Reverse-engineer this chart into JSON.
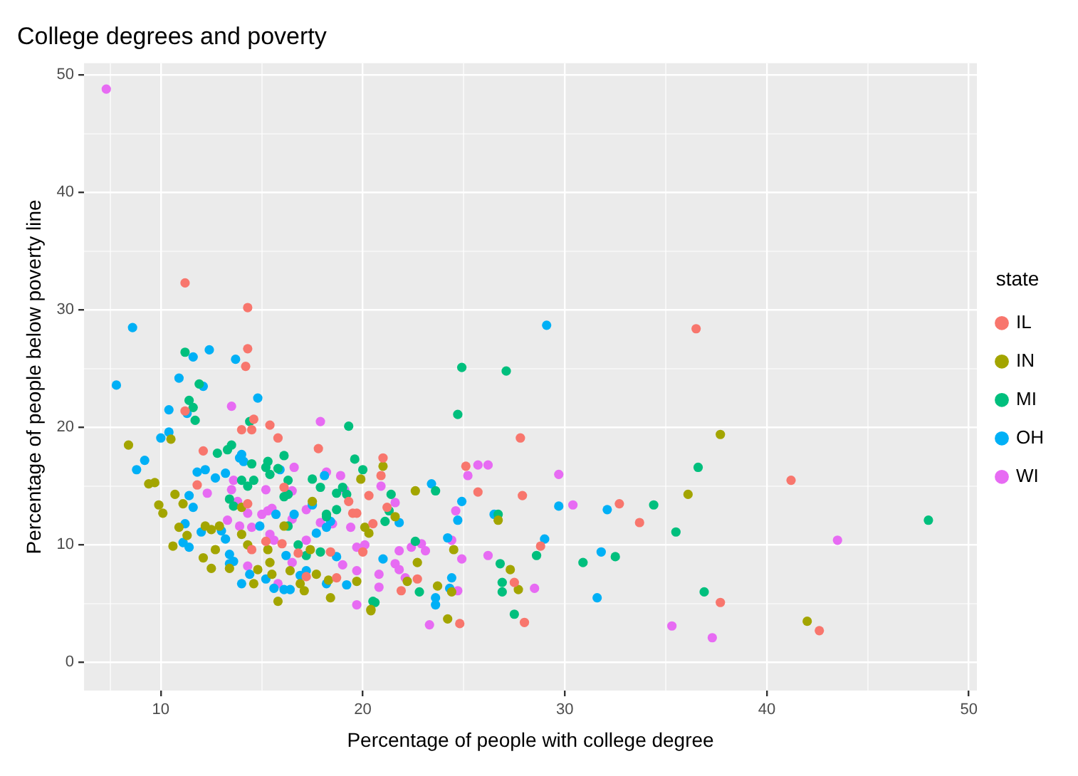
{
  "chart_data": {
    "type": "scatter",
    "title": "College degrees and poverty",
    "xlabel": "Percentage of people with college degree",
    "ylabel": "Percentage of people below poverty line",
    "legend_title": "state",
    "legend": "right",
    "grid": true,
    "marker": "circle",
    "xlim": [
      6.2,
      50.4
    ],
    "ylim": [
      -2.4,
      51.0
    ],
    "xticks": [
      {
        "value": 7.5,
        "label": null
      },
      10,
      {
        "value": 15,
        "label": null
      },
      20,
      {
        "value": 25,
        "label": null
      },
      30,
      {
        "value": 35,
        "label": null
      },
      40,
      {
        "value": 45,
        "label": null
      },
      50
    ],
    "yticks": [
      0,
      {
        "value": 5,
        "label": null
      },
      10,
      {
        "value": 15,
        "label": null
      },
      20,
      {
        "value": 25,
        "label": null
      },
      30,
      {
        "value": 35,
        "label": null
      },
      40,
      {
        "value": 45,
        "label": null
      },
      50
    ],
    "series": [
      {
        "name": "IL",
        "color": "#f8766d",
        "x": [
          11.2,
          14.3,
          14.3,
          14.2,
          36.5,
          41.2,
          32.7,
          33.7,
          37.7,
          42.6,
          27.8,
          25.1,
          25.7,
          27.9,
          28.8,
          27.5,
          28.0,
          24.8,
          22.7,
          21.9,
          21.0,
          20.9,
          20.3,
          21.2,
          20.5,
          19.5,
          11.2,
          14.6,
          14.0,
          14.5,
          15.4,
          15.8,
          17.8,
          12.1,
          11.8,
          14.5,
          15.2,
          17.2,
          18.7,
          18.4,
          20.0,
          16.8,
          19.3,
          19.7,
          16.1,
          14.3,
          16.0
        ],
        "values": [
          32.3,
          30.2,
          26.7,
          25.2,
          28.4,
          15.5,
          13.5,
          11.9,
          5.1,
          2.7,
          19.1,
          16.7,
          14.5,
          14.2,
          9.9,
          6.8,
          3.4,
          3.3,
          7.1,
          6.1,
          17.4,
          15.9,
          14.2,
          13.2,
          11.8,
          12.7,
          21.4,
          20.7,
          19.8,
          19.8,
          20.2,
          19.1,
          18.2,
          18.0,
          15.1,
          9.6,
          10.3,
          7.3,
          7.2,
          9.4,
          9.4,
          9.3,
          13.7,
          12.7,
          14.9,
          13.5,
          10.1
        ]
      },
      {
        "name": "IN",
        "color": "#a3a500",
        "x": [
          37.7,
          36.1,
          42.0,
          22.6,
          26.7,
          24.5,
          27.3,
          27.7,
          24.4,
          24.2,
          22.7,
          23.7,
          22.2,
          20.4,
          19.7,
          21.0,
          19.9,
          21.6,
          20.2,
          10.5,
          8.4,
          9.4,
          9.7,
          9.9,
          10.1,
          10.7,
          11.1,
          10.9,
          11.3,
          10.6,
          12.1,
          12.5,
          12.2,
          12.5,
          12.7,
          13.4,
          14.6,
          14.8,
          14.0,
          14.3,
          12.9,
          15.3,
          16.1,
          15.4,
          15.5,
          15.8,
          16.4,
          16.9,
          17.1,
          17.7,
          18.3,
          18.4,
          20.4,
          17.4,
          20.1,
          20.3,
          17.5,
          14.0
        ],
        "values": [
          19.4,
          14.3,
          3.5,
          14.6,
          12.1,
          9.6,
          7.9,
          6.2,
          6.0,
          3.7,
          8.5,
          6.5,
          6.9,
          4.4,
          6.9,
          16.7,
          15.6,
          12.4,
          null,
          19.0,
          18.5,
          15.2,
          15.3,
          13.4,
          12.7,
          14.3,
          13.5,
          11.5,
          10.8,
          9.9,
          8.9,
          8.0,
          11.6,
          11.3,
          9.6,
          8.0,
          6.7,
          7.9,
          10.9,
          10.0,
          11.6,
          9.6,
          11.6,
          8.5,
          7.5,
          5.2,
          7.8,
          6.7,
          6.1,
          7.5,
          7.0,
          5.5,
          4.5,
          9.6,
          11.5,
          11.0,
          13.7,
          13.2
        ]
      },
      {
        "name": "MI",
        "color": "#00bf7d",
        "x": [
          36.6,
          34.4,
          35.5,
          32.5,
          36.9,
          48.0,
          24.9,
          27.1,
          24.7,
          19.3,
          23.6,
          26.7,
          26.8,
          28.6,
          30.9,
          26.9,
          26.9,
          27.5,
          22.8,
          22.6,
          20.6,
          19.6,
          20.0,
          21.4,
          21.3,
          21.1,
          11.2,
          11.9,
          11.4,
          11.6,
          11.7,
          14.4,
          12.8,
          13.3,
          13.5,
          20.5,
          17.2,
          17.9,
          16.8,
          18.2,
          18.7,
          19.0,
          18.7,
          19.2,
          17.5,
          17.9,
          16.1,
          15.3,
          15.8,
          15.2,
          16.3,
          16.1,
          16.3,
          18.2,
          16.3,
          14.5,
          14.0,
          14.3,
          14.6,
          13.4,
          13.6,
          15.4
        ],
        "values": [
          16.6,
          13.4,
          11.1,
          9.0,
          6.0,
          12.1,
          25.1,
          24.8,
          21.1,
          20.1,
          14.6,
          12.6,
          8.4,
          9.1,
          8.5,
          6.8,
          6.0,
          4.1,
          6.0,
          10.3,
          5.1,
          17.3,
          16.4,
          14.3,
          12.9,
          12.0,
          26.4,
          23.7,
          22.3,
          21.7,
          20.6,
          20.5,
          17.8,
          18.1,
          18.5,
          5.2,
          9.1,
          9.4,
          10.0,
          12.4,
          13.0,
          14.9,
          14.4,
          14.3,
          15.6,
          14.9,
          17.6,
          17.1,
          16.5,
          16.6,
          15.5,
          14.1,
          14.3,
          12.6,
          11.6,
          16.9,
          15.5,
          15.0,
          15.5,
          13.9,
          13.3,
          16.0
        ]
      },
      {
        "name": "OH",
        "color": "#00b0f6",
        "x": [
          32.1,
          31.8,
          31.6,
          29.1,
          23.4,
          24.9,
          29.7,
          24.7,
          26.5,
          24.2,
          29.0,
          24.4,
          24.3,
          23.6,
          23.6,
          21.0,
          19.2,
          21.8,
          8.6,
          11.6,
          12.4,
          13.7,
          7.8,
          10.9,
          12.1,
          14.8,
          10.4,
          11.3,
          10.4,
          10.0,
          9.2,
          8.8,
          11.4,
          11.6,
          11.8,
          12.2,
          11.2,
          11.1,
          11.4,
          12.0,
          13.4,
          13.6,
          13.4,
          14.0,
          14.4,
          13.2,
          13.0,
          14.9,
          15.7,
          16.2,
          15.2,
          15.6,
          16.1,
          16.4,
          16.9,
          17.2,
          18.2,
          18.7,
          17.7,
          18.2,
          18.4,
          18.1,
          15.9,
          17.5,
          16.6,
          13.9,
          14.0,
          14.1,
          12.7,
          13.2
        ],
        "values": [
          13.0,
          9.4,
          5.5,
          28.7,
          15.2,
          13.7,
          13.3,
          12.1,
          12.6,
          10.6,
          10.5,
          7.2,
          6.3,
          5.5,
          4.9,
          8.8,
          6.6,
          11.9,
          28.5,
          26.0,
          26.6,
          25.8,
          23.6,
          24.2,
          23.5,
          22.5,
          21.5,
          21.2,
          19.6,
          19.1,
          17.2,
          16.4,
          14.2,
          13.2,
          16.2,
          16.4,
          11.8,
          10.2,
          9.8,
          11.1,
          9.2,
          8.6,
          8.4,
          6.7,
          7.5,
          10.5,
          11.2,
          11.6,
          12.6,
          9.1,
          7.1,
          6.3,
          6.2,
          6.2,
          7.4,
          7.8,
          6.7,
          9.0,
          11.0,
          11.5,
          12.0,
          15.9,
          16.4,
          13.4,
          12.6,
          17.4,
          17.7,
          17.1,
          15.7,
          16.1
        ]
      },
      {
        "name": "WI",
        "color": "#e76bf3",
        "x": [
          7.3,
          43.5,
          35.3,
          37.3,
          25.7,
          26.2,
          25.2,
          29.7,
          30.4,
          24.6,
          24.4,
          24.9,
          26.2,
          28.5,
          24.7,
          23.3,
          21.8,
          22.4,
          22.9,
          23.1,
          21.6,
          21.8,
          22.1,
          19.7,
          20.8,
          20.8,
          20.9,
          21.6,
          13.5,
          17.9,
          12.3,
          14.3,
          13.3,
          13.9,
          14.5,
          15.0,
          15.3,
          15.5,
          15.6,
          15.4,
          16.5,
          15.8,
          19.7,
          19.0,
          19.7,
          20.1,
          17.2,
          17.9,
          18.5,
          19.4,
          19.1,
          18.2,
          18.9,
          15.2,
          16.5,
          17.2,
          16.5,
          16.6,
          13.6,
          13.5,
          13.8,
          14.3
        ],
        "values": [
          48.8,
          10.4,
          3.1,
          2.1,
          16.8,
          16.8,
          15.9,
          16.0,
          13.4,
          12.9,
          10.4,
          8.8,
          9.1,
          6.3,
          6.1,
          3.2,
          9.5,
          9.8,
          10.1,
          9.5,
          8.4,
          7.9,
          7.2,
          4.9,
          7.5,
          6.4,
          15.0,
          13.6,
          21.8,
          20.5,
          14.4,
          8.2,
          12.1,
          11.6,
          11.5,
          12.6,
          12.9,
          13.1,
          10.4,
          10.9,
          8.5,
          6.7,
          7.8,
          8.3,
          9.8,
          10.0,
          10.4,
          11.9,
          11.8,
          11.5,
          14.7,
          16.2,
          15.9,
          14.7,
          14.6,
          13.0,
          12.2,
          16.6,
          15.5,
          14.7,
          13.7,
          12.7
        ]
      }
    ]
  }
}
